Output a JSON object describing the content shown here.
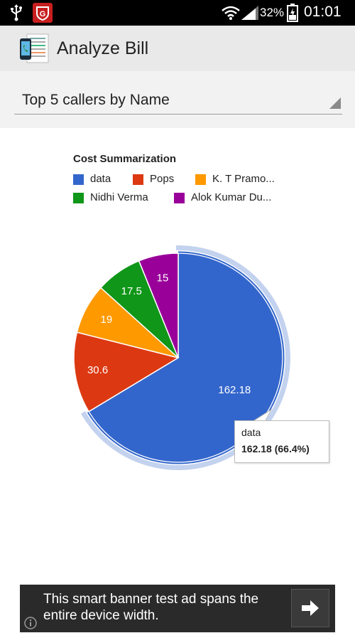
{
  "status_bar": {
    "battery_pct": "32%",
    "time": "01:01"
  },
  "action_bar": {
    "title": "Analyze Bill"
  },
  "spinner": {
    "selected": "Top 5 callers by Name"
  },
  "chart": {
    "title": "Cost Summarization",
    "tooltip": {
      "category": "data",
      "value": "162.18 (66.4%)"
    }
  },
  "chart_data": {
    "type": "pie",
    "title": "Cost Summarization",
    "legend_position": "top",
    "categories": [
      "data",
      "Pops",
      "K. T Pramo...",
      "Nidhi Verma",
      "Alok Kumar Du..."
    ],
    "values": [
      162.18,
      30.6,
      19,
      17.5,
      15
    ],
    "colors": [
      "#3366cc",
      "#dc3912",
      "#ff9900",
      "#109618",
      "#990099"
    ],
    "slice_labels": [
      "162.18",
      "30.6",
      "19",
      "17.5",
      "15"
    ],
    "highlighted_slice": "data"
  },
  "ad": {
    "text": "This smart banner test ad spans the entire device width."
  }
}
